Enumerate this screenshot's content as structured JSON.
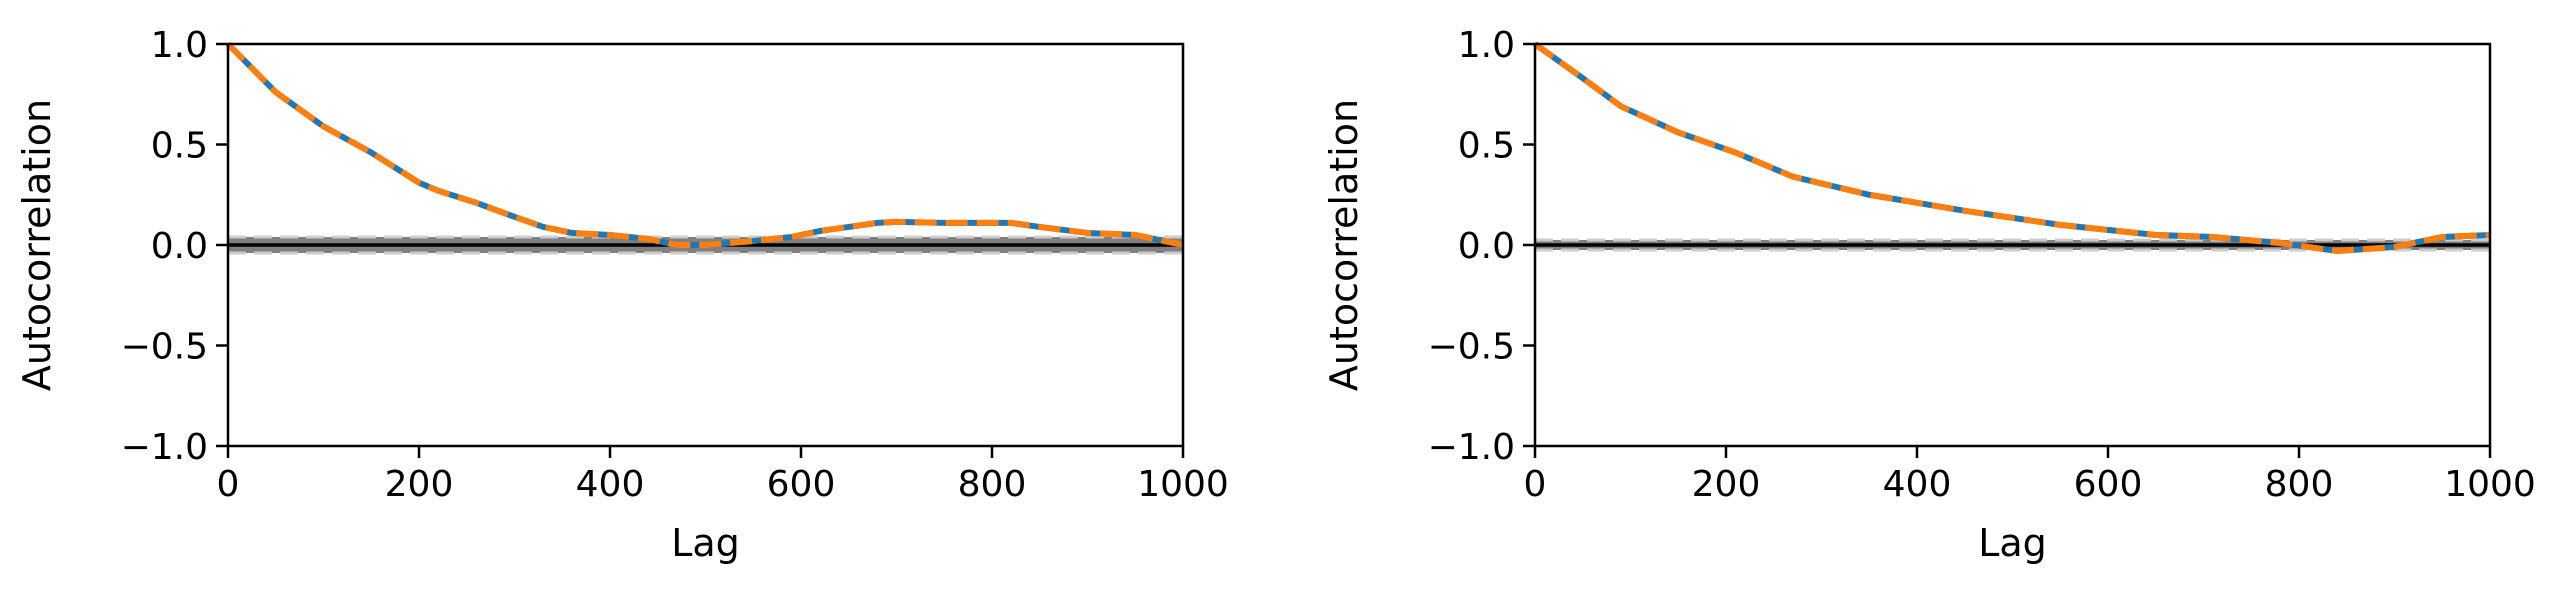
{
  "chart_data": [
    {
      "type": "line",
      "xlabel": "Lag",
      "ylabel": "Autocorrelation",
      "xlim": [
        0,
        1000
      ],
      "ylim": [
        -1.0,
        1.0
      ],
      "xticks": [
        "0",
        "200",
        "400",
        "600",
        "800",
        "1000"
      ],
      "yticks": [
        "−1.0",
        "−0.5",
        "0.0",
        "0.5",
        "1.0"
      ],
      "confidence_band": 0.04,
      "grid": false,
      "colors": {
        "series_solid": "#1f77b4",
        "series_dashed": "#ff7f0e",
        "band": "#808080"
      },
      "x": [
        0,
        50,
        100,
        150,
        200,
        220,
        260,
        300,
        330,
        360,
        400,
        440,
        470,
        500,
        550,
        590,
        620,
        650,
        680,
        700,
        750,
        820,
        850,
        900,
        950,
        1000
      ],
      "series": [
        {
          "values": [
            1.0,
            0.76,
            0.59,
            0.46,
            0.31,
            0.27,
            0.21,
            0.14,
            0.09,
            0.06,
            0.05,
            0.03,
            0.0,
            0.0,
            0.02,
            0.04,
            0.07,
            0.09,
            0.11,
            0.115,
            0.11,
            0.11,
            0.09,
            0.06,
            0.05,
            0.0
          ]
        },
        {
          "values": [
            1.0,
            0.76,
            0.59,
            0.46,
            0.31,
            0.27,
            0.21,
            0.14,
            0.09,
            0.06,
            0.05,
            0.03,
            0.0,
            0.0,
            0.02,
            0.04,
            0.07,
            0.09,
            0.11,
            0.115,
            0.11,
            0.11,
            0.09,
            0.06,
            0.05,
            0.0
          ]
        }
      ]
    },
    {
      "type": "line",
      "xlabel": "Lag",
      "ylabel": "Autocorrelation",
      "xlim": [
        0,
        1000
      ],
      "ylim": [
        -1.0,
        1.0
      ],
      "xticks": [
        "0",
        "200",
        "400",
        "600",
        "800",
        "1000"
      ],
      "yticks": [
        "−1.0",
        "−0.5",
        "0.0",
        "0.5",
        "1.0"
      ],
      "confidence_band": 0.025,
      "grid": false,
      "colors": {
        "series_solid": "#1f77b4",
        "series_dashed": "#ff7f0e",
        "band": "#808080"
      },
      "x": [
        0,
        50,
        90,
        150,
        210,
        270,
        350,
        450,
        550,
        650,
        710,
        780,
        840,
        900,
        950,
        1000
      ],
      "series": [
        {
          "values": [
            1.0,
            0.83,
            0.69,
            0.56,
            0.46,
            0.34,
            0.25,
            0.17,
            0.1,
            0.05,
            0.04,
            0.01,
            -0.03,
            -0.01,
            0.04,
            0.05
          ]
        },
        {
          "values": [
            1.0,
            0.83,
            0.69,
            0.56,
            0.46,
            0.34,
            0.25,
            0.17,
            0.1,
            0.05,
            0.04,
            0.01,
            -0.03,
            -0.01,
            0.04,
            0.05
          ]
        }
      ]
    }
  ]
}
